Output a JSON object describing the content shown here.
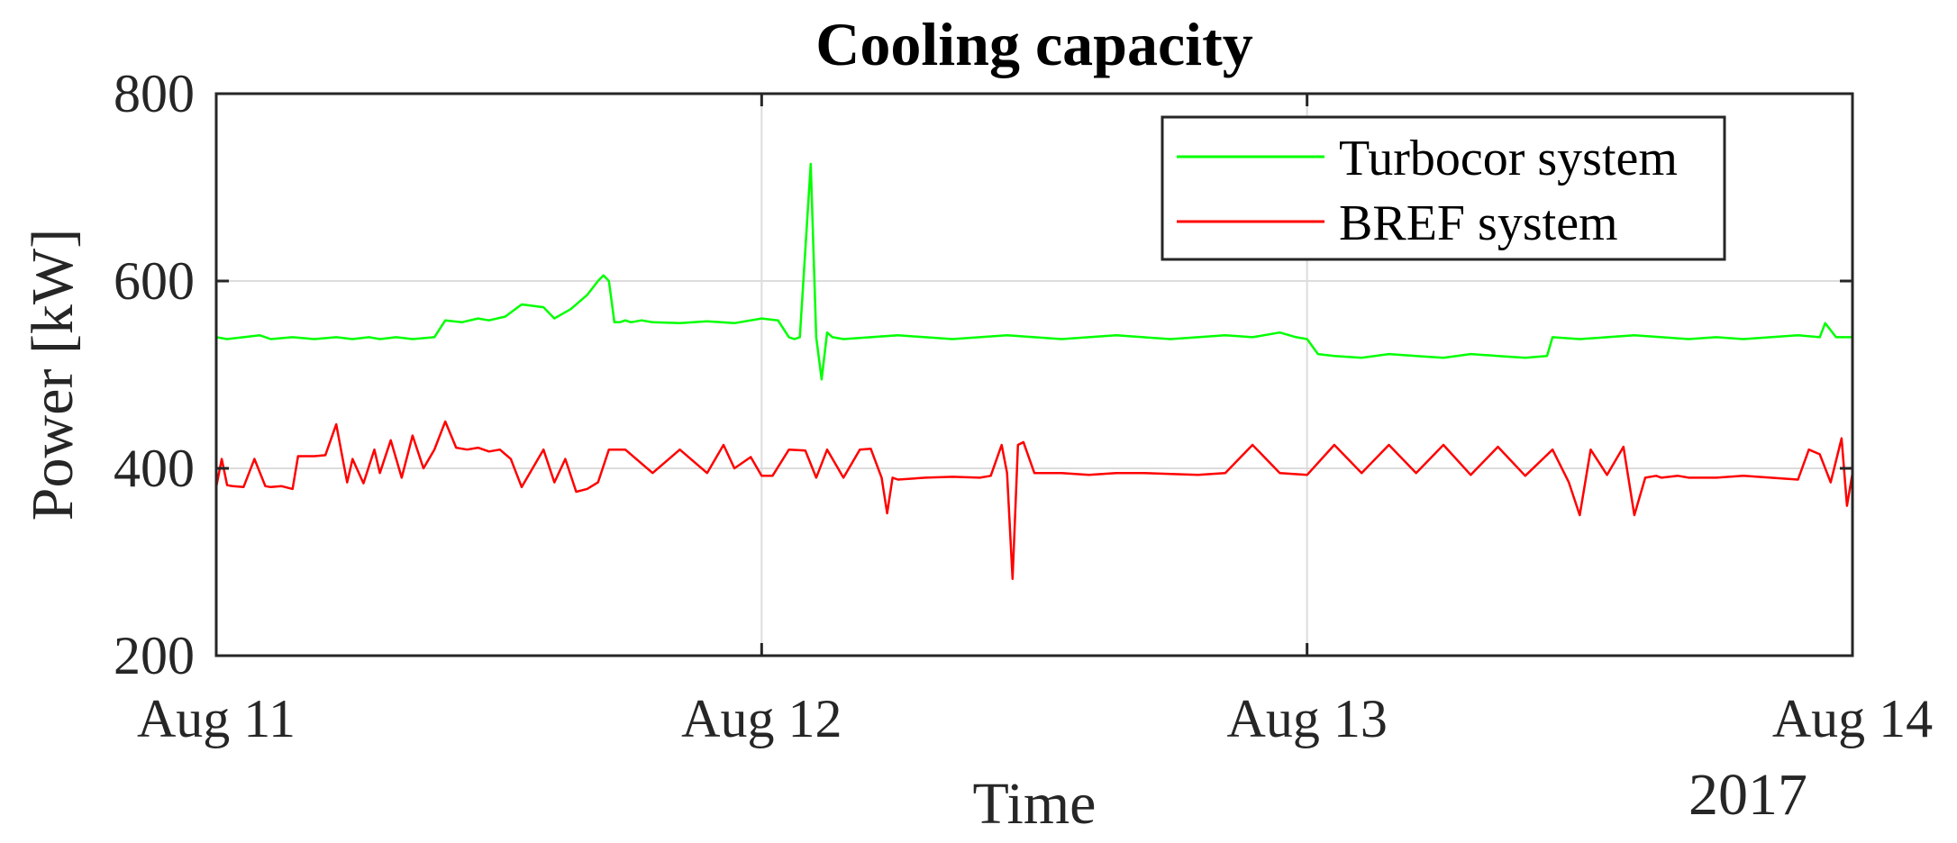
{
  "chart_data": {
    "type": "line",
    "title": "Cooling capacity",
    "xlabel": "Time",
    "ylabel": "Power [kW]",
    "x_secondary_label": "2017",
    "xlim": [
      0,
      3
    ],
    "ylim": [
      200,
      800
    ],
    "xticks": [
      {
        "value": 0,
        "label": "Aug 11"
      },
      {
        "value": 1,
        "label": "Aug 12"
      },
      {
        "value": 2,
        "label": "Aug 13"
      },
      {
        "value": 3,
        "label": "Aug 14"
      }
    ],
    "yticks": [
      {
        "value": 200,
        "label": "200"
      },
      {
        "value": 400,
        "label": "400"
      },
      {
        "value": 600,
        "label": "600"
      },
      {
        "value": 800,
        "label": "800"
      }
    ],
    "grid": true,
    "legend_position": "top-right",
    "series": [
      {
        "name": "Turbocor system",
        "color": "#00ff00",
        "x": [
          0.0,
          0.02,
          0.05,
          0.08,
          0.1,
          0.14,
          0.18,
          0.22,
          0.25,
          0.28,
          0.3,
          0.33,
          0.36,
          0.4,
          0.42,
          0.45,
          0.48,
          0.5,
          0.53,
          0.56,
          0.6,
          0.62,
          0.65,
          0.68,
          0.7,
          0.71,
          0.72,
          0.73,
          0.74,
          0.75,
          0.76,
          0.78,
          0.8,
          0.85,
          0.9,
          0.95,
          1.0,
          1.03,
          1.05,
          1.06,
          1.07,
          1.09,
          1.1,
          1.11,
          1.12,
          1.13,
          1.15,
          1.2,
          1.25,
          1.3,
          1.35,
          1.4,
          1.45,
          1.5,
          1.55,
          1.6,
          1.65,
          1.7,
          1.75,
          1.8,
          1.85,
          1.9,
          1.95,
          1.98,
          2.0,
          2.02,
          2.05,
          2.1,
          2.15,
          2.2,
          2.25,
          2.3,
          2.35,
          2.4,
          2.44,
          2.45,
          2.5,
          2.55,
          2.6,
          2.65,
          2.7,
          2.75,
          2.8,
          2.85,
          2.9,
          2.94,
          2.95,
          2.97,
          3.0
        ],
        "y": [
          540,
          538,
          540,
          542,
          538,
          540,
          538,
          540,
          538,
          540,
          538,
          540,
          538,
          540,
          558,
          556,
          560,
          558,
          562,
          575,
          572,
          560,
          570,
          585,
          600,
          606,
          600,
          556,
          556,
          558,
          556,
          558,
          556,
          555,
          557,
          555,
          560,
          558,
          540,
          538,
          540,
          725,
          540,
          495,
          545,
          540,
          538,
          540,
          542,
          540,
          538,
          540,
          542,
          540,
          538,
          540,
          542,
          540,
          538,
          540,
          542,
          540,
          545,
          540,
          538,
          522,
          520,
          518,
          522,
          520,
          518,
          522,
          520,
          518,
          520,
          540,
          538,
          540,
          542,
          540,
          538,
          540,
          538,
          540,
          542,
          540,
          555,
          540,
          540
        ]
      },
      {
        "name": "BREF system",
        "color": "#ff0000",
        "x": [
          0.0,
          0.01,
          0.02,
          0.03,
          0.05,
          0.07,
          0.09,
          0.1,
          0.12,
          0.14,
          0.15,
          0.18,
          0.2,
          0.22,
          0.23,
          0.24,
          0.25,
          0.27,
          0.29,
          0.3,
          0.32,
          0.34,
          0.36,
          0.38,
          0.4,
          0.42,
          0.44,
          0.46,
          0.48,
          0.5,
          0.52,
          0.54,
          0.56,
          0.6,
          0.62,
          0.64,
          0.66,
          0.68,
          0.7,
          0.72,
          0.75,
          0.8,
          0.85,
          0.9,
          0.93,
          0.95,
          0.98,
          1.0,
          1.02,
          1.05,
          1.08,
          1.1,
          1.12,
          1.15,
          1.18,
          1.2,
          1.22,
          1.23,
          1.24,
          1.25,
          1.3,
          1.35,
          1.4,
          1.42,
          1.44,
          1.45,
          1.46,
          1.47,
          1.48,
          1.5,
          1.52,
          1.55,
          1.6,
          1.65,
          1.7,
          1.75,
          1.8,
          1.85,
          1.9,
          1.95,
          2.0,
          2.05,
          2.1,
          2.15,
          2.2,
          2.25,
          2.3,
          2.35,
          2.4,
          2.45,
          2.48,
          2.5,
          2.52,
          2.55,
          2.58,
          2.6,
          2.62,
          2.64,
          2.65,
          2.68,
          2.7,
          2.75,
          2.8,
          2.85,
          2.9,
          2.92,
          2.94,
          2.96,
          2.98,
          2.99,
          3.0
        ],
        "y": [
          380,
          410,
          382,
          381,
          380,
          410,
          381,
          380,
          381,
          378,
          413,
          413,
          414,
          447,
          416,
          385,
          410,
          384,
          420,
          395,
          430,
          390,
          435,
          400,
          420,
          450,
          422,
          420,
          422,
          418,
          420,
          410,
          380,
          420,
          385,
          410,
          375,
          378,
          385,
          420,
          420,
          395,
          420,
          395,
          425,
          400,
          412,
          392,
          392,
          420,
          419,
          390,
          420,
          390,
          420,
          421,
          390,
          352,
          390,
          388,
          390,
          391,
          390,
          392,
          425,
          395,
          282,
          425,
          428,
          395,
          395,
          395,
          393,
          395,
          395,
          394,
          393,
          395,
          425,
          395,
          393,
          425,
          395,
          425,
          395,
          425,
          393,
          423,
          392,
          420,
          385,
          350,
          420,
          393,
          423,
          350,
          390,
          392,
          390,
          392,
          390,
          390,
          392,
          390,
          388,
          420,
          415,
          385,
          432,
          360,
          395
        ]
      }
    ]
  }
}
